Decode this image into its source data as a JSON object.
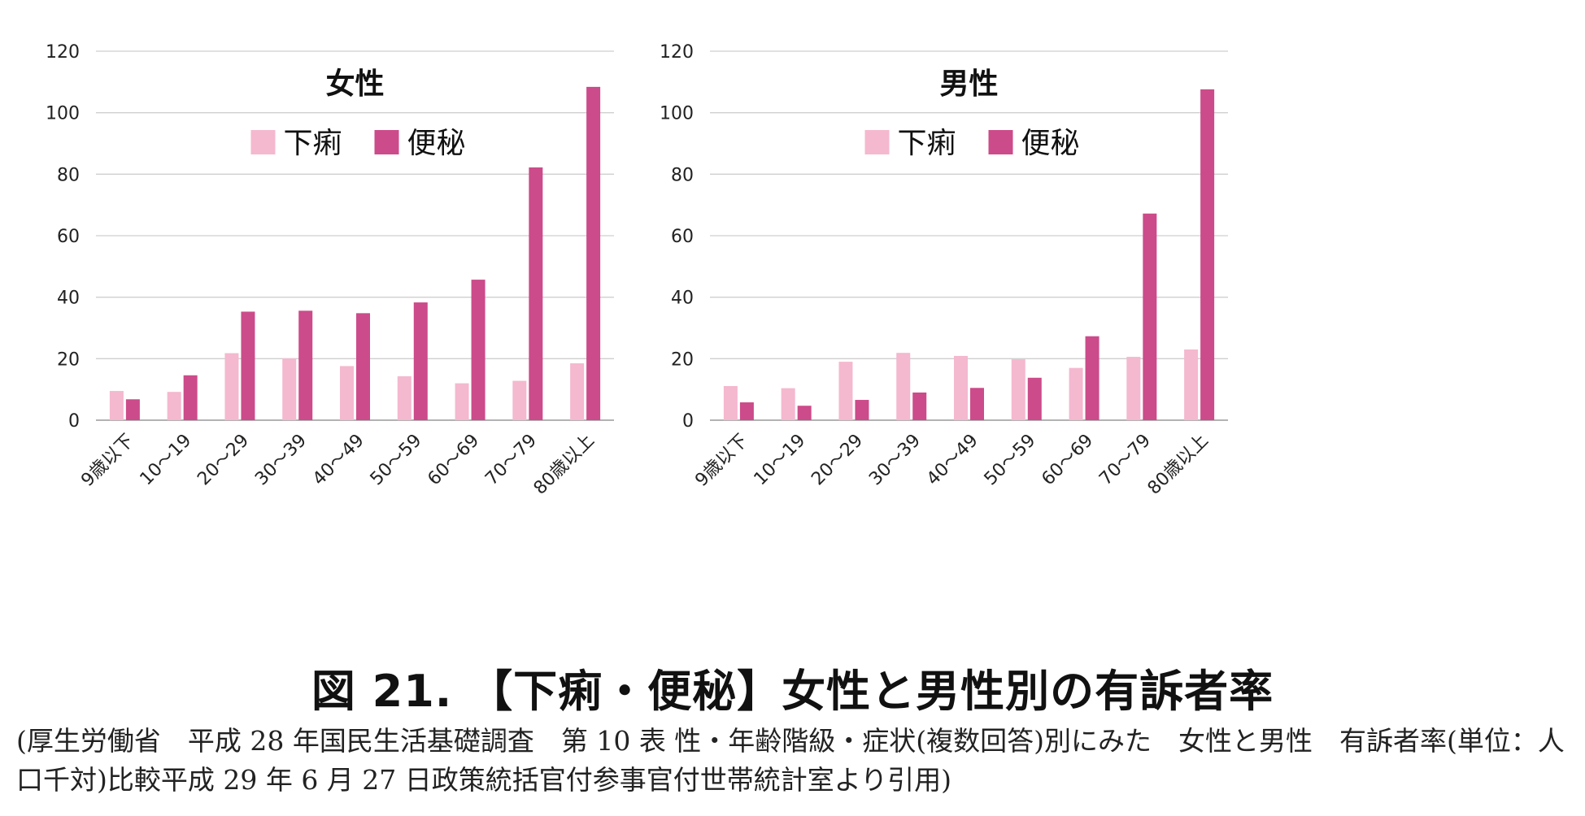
{
  "chart_data": [
    {
      "type": "bar",
      "title": "女性",
      "categories": [
        "9歳以下",
        "10～19",
        "20～29",
        "30～39",
        "40～49",
        "50～59",
        "60～69",
        "70～79",
        "80歳以上"
      ],
      "ylim": [
        0,
        120
      ],
      "yticks": [
        "0",
        "20",
        "40",
        "60",
        "80",
        "100",
        "120"
      ],
      "grid": true,
      "legend_position": "top-center",
      "series": [
        {
          "name": "下痢",
          "color": "#f4b8cf",
          "values": [
            9.5,
            9.2,
            21.8,
            20.1,
            17.6,
            14.3,
            12.0,
            12.8,
            18.5
          ]
        },
        {
          "name": "便秘",
          "color": "#cc4b8a",
          "values": [
            6.8,
            14.6,
            35.3,
            35.6,
            34.8,
            38.3,
            45.7,
            82.2,
            108.4
          ]
        }
      ]
    },
    {
      "type": "bar",
      "title": "男性",
      "categories": [
        "9歳以下",
        "10～19",
        "20～29",
        "30～39",
        "40～49",
        "50～59",
        "60～69",
        "70～79",
        "80歳以上"
      ],
      "ylim": [
        0,
        120
      ],
      "yticks": [
        "0",
        "20",
        "40",
        "60",
        "80",
        "100",
        "120"
      ],
      "grid": true,
      "legend_position": "top-center",
      "series": [
        {
          "name": "下痢",
          "color": "#f4b8cf",
          "values": [
            11.1,
            10.4,
            19.0,
            21.9,
            20.9,
            19.8,
            17.0,
            20.6,
            23.0
          ]
        },
        {
          "name": "便秘",
          "color": "#cc4b8a",
          "values": [
            5.8,
            4.7,
            6.6,
            9.0,
            10.5,
            13.8,
            27.3,
            67.2,
            107.6
          ]
        }
      ]
    }
  ],
  "caption": {
    "title": "図 21. 【下痢・便秘】女性と男性別の有訴者率",
    "note": "(厚生労働省　平成 28 年国民生活基礎調査　第 10 表 性・年齢階級・症状(複数回答)別にみた　女性と男性　有訴者率(単位：人口千対)比較平成 29 年 6 月 27 日政策統括官付参事官付世帯統計室より引用)"
  }
}
